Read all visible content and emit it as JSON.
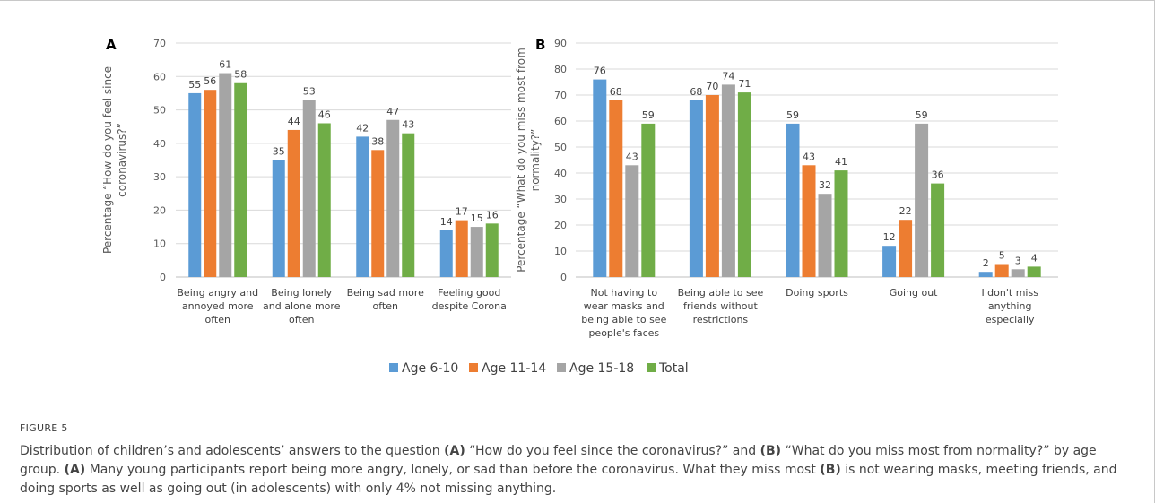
{
  "legend": [
    "Age 6-10",
    "Age 11-14",
    "Age 15-18",
    "Total"
  ],
  "colors": [
    "#5b9bd5",
    "#ed7d31",
    "#a5a5a5",
    "#70ad47"
  ],
  "caption": {
    "label": "FIGURE 5",
    "parts": [
      {
        "t": "Distribution of children’s and adolescents’ answers to the question "
      },
      {
        "t": "(A)",
        "b": true
      },
      {
        "t": " “How do you feel since the coronavirus?” and "
      },
      {
        "t": "(B)",
        "b": true
      },
      {
        "t": " “What do you miss most from normality?” by age group. "
      },
      {
        "t": "(A)",
        "b": true
      },
      {
        "t": " Many young participants report being more angry, lonely, or sad than before the coronavirus. What they miss most "
      },
      {
        "t": "(B)",
        "b": true
      },
      {
        "t": " is not wearing masks, meeting friends, and doing sports as well as going out (in adolescents) with only 4% not missing anything."
      }
    ]
  },
  "chart_data": [
    {
      "type": "bar",
      "panel_label": "A",
      "ylabel": "Percentage “How do you feel since coronavirus?”",
      "ylim": [
        0,
        70
      ],
      "yticks": [
        0,
        10,
        20,
        30,
        40,
        50,
        60,
        70
      ],
      "grid": true,
      "categories": [
        [
          "Being angry and",
          "annoyed more",
          "often"
        ],
        [
          "Being lonely",
          "and alone more",
          "often"
        ],
        [
          "Being sad more",
          "often"
        ],
        [
          "Feeling good",
          "despite Corona"
        ]
      ],
      "series": [
        {
          "name": "Age 6-10",
          "values": [
            55,
            35,
            42,
            14
          ],
          "labels": [
            55,
            35,
            42,
            14
          ]
        },
        {
          "name": "Age 11-14",
          "values": [
            56,
            44,
            38,
            17
          ],
          "labels": [
            56,
            44,
            38,
            17
          ]
        },
        {
          "name": "Age 15-18",
          "values": [
            61,
            53,
            47,
            15
          ],
          "labels": [
            61,
            53,
            47,
            15
          ]
        },
        {
          "name": "Total",
          "values": [
            58,
            46,
            43,
            16
          ],
          "labels": [
            58,
            46,
            43,
            16
          ]
        }
      ]
    },
    {
      "type": "bar",
      "panel_label": "B",
      "ylabel": "Percentage “What do you miss most from normality?”",
      "ylim": [
        0,
        90
      ],
      "yticks": [
        0,
        10,
        20,
        30,
        40,
        50,
        60,
        70,
        80,
        90
      ],
      "grid": true,
      "categories": [
        [
          "Not having to",
          "wear masks and",
          "being able to see",
          "people's faces"
        ],
        [
          "Being able to see",
          "friends without",
          "restrictions"
        ],
        [
          "Doing sports"
        ],
        [
          "Going out"
        ],
        [
          "I don't miss",
          "anything",
          "especially"
        ]
      ],
      "series": [
        {
          "name": "Age 6-10",
          "values": [
            76,
            68,
            59,
            12,
            2
          ],
          "labels": [
            76,
            68,
            59,
            12,
            2
          ]
        },
        {
          "name": "Age 11-14",
          "values": [
            68,
            70,
            43,
            22,
            5
          ],
          "labels": [
            68,
            70,
            43,
            22,
            5
          ]
        },
        {
          "name": "Age 15-18",
          "values": [
            43,
            74,
            32,
            59,
            3
          ],
          "labels": [
            43,
            74,
            32,
            59,
            3
          ]
        },
        {
          "name": "Total",
          "values": [
            59,
            71,
            41,
            36,
            4
          ],
          "labels": [
            59,
            71,
            41,
            36,
            4
          ]
        }
      ]
    }
  ]
}
